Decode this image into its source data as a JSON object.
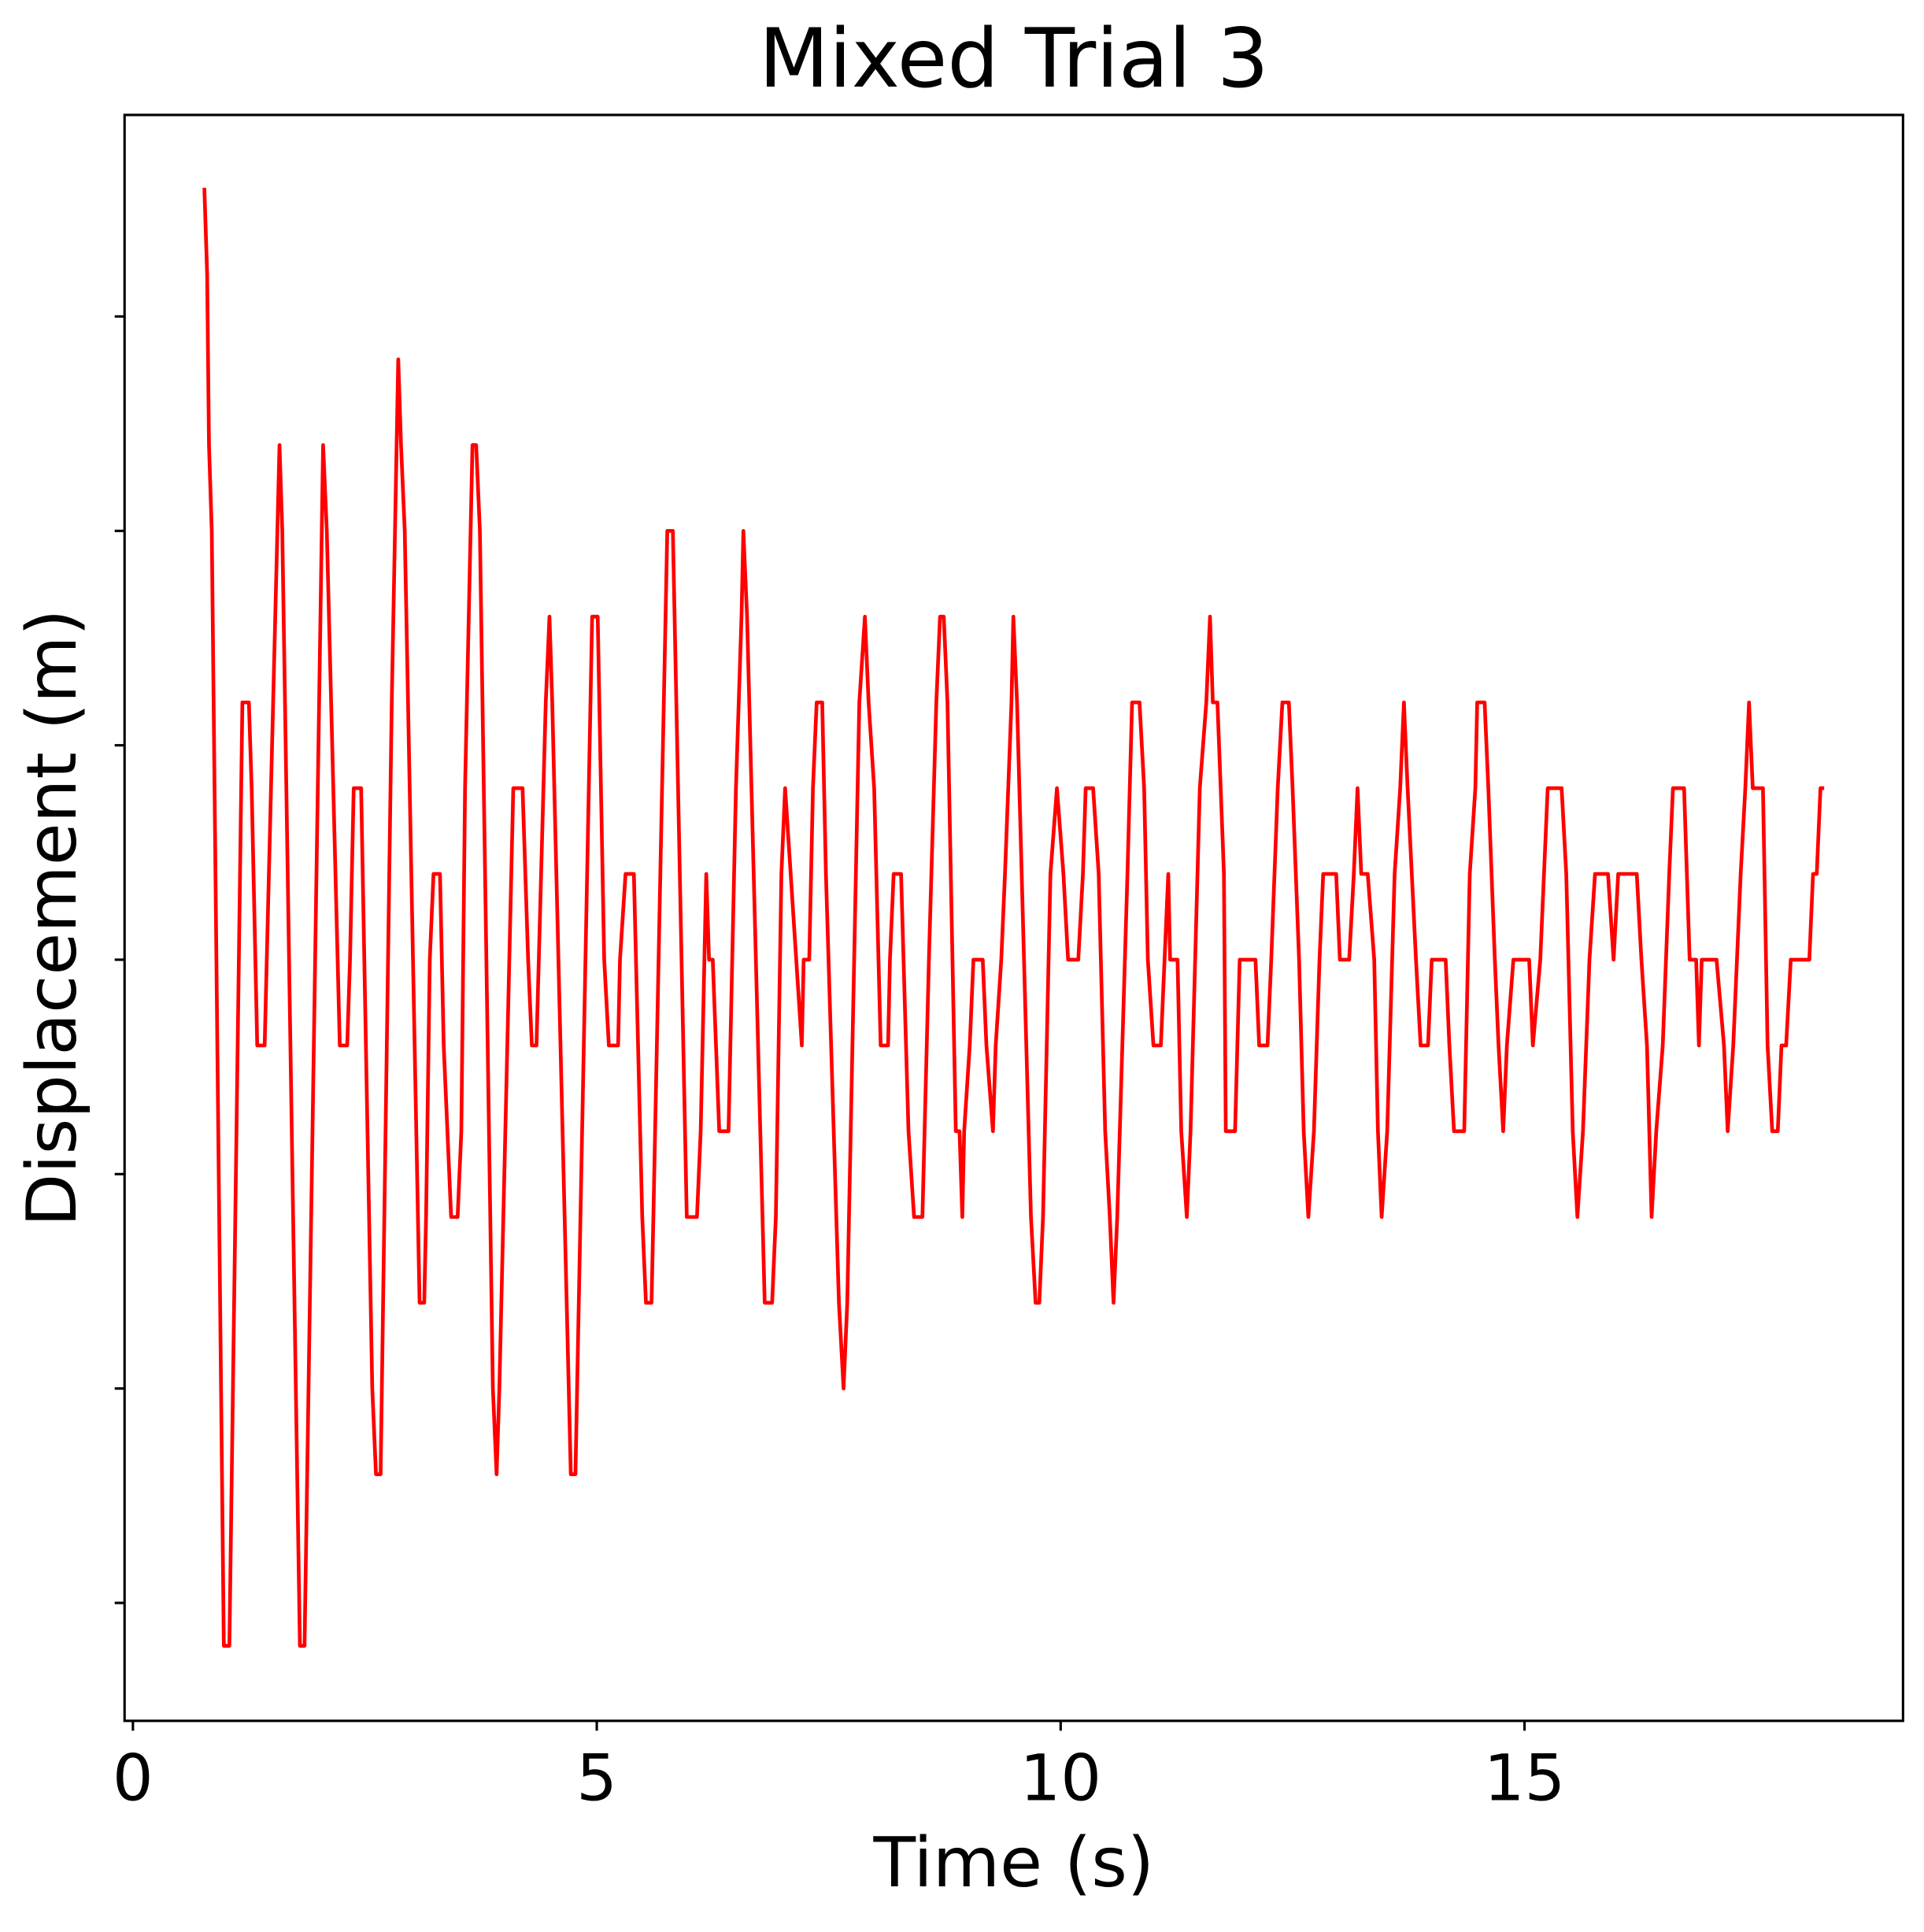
{
  "chart_data": {
    "type": "line",
    "title": "Mixed Trial 3",
    "x_label": "Time (s)",
    "y_label": "Displacement (m)",
    "xlim": [
      -0.09,
      19.08
    ],
    "xticks": [
      0,
      5,
      10,
      15
    ],
    "ylim": [
      -3.55,
      3.94
    ],
    "yticks": [
      -3,
      -2,
      -1,
      0,
      1,
      2,
      3
    ],
    "x": [
      0.77,
      0.8,
      0.82,
      0.85,
      0.98,
      1.04,
      1.18,
      1.25,
      1.28,
      1.32,
      1.34,
      1.42,
      1.58,
      1.61,
      1.8,
      1.85,
      2.05,
      2.09,
      2.23,
      2.31,
      2.34,
      2.38,
      2.46,
      2.58,
      2.62,
      2.67,
      2.79,
      2.86,
      2.89,
      2.93,
      3.09,
      3.14,
      3.16,
      3.2,
      3.24,
      3.31,
      3.35,
      3.43,
      3.5,
      3.54,
      3.58,
      3.66,
      3.7,
      3.74,
      3.88,
      3.92,
      3.95,
      4.1,
      4.2,
      4.26,
      4.3,
      4.35,
      4.45,
      4.49,
      4.52,
      4.72,
      4.77,
      4.95,
      5.01,
      5.08,
      5.13,
      5.23,
      5.25,
      5.31,
      5.4,
      5.49,
      5.53,
      5.59,
      5.61,
      5.76,
      5.82,
      5.97,
      6.08,
      6.12,
      6.16,
      6.18,
      6.21,
      6.25,
      6.32,
      6.42,
      6.5,
      6.56,
      6.58,
      6.62,
      6.81,
      6.89,
      6.93,
      6.99,
      7.03,
      7.09,
      7.15,
      7.21,
      7.23,
      7.29,
      7.33,
      7.37,
      7.43,
      7.47,
      7.61,
      7.66,
      7.7,
      7.83,
      7.89,
      7.93,
      7.99,
      8.06,
      8.14,
      8.16,
      8.2,
      8.28,
      8.36,
      8.42,
      8.51,
      8.58,
      8.66,
      8.7,
      8.74,
      8.78,
      8.87,
      8.91,
      8.94,
      8.96,
      9.02,
      9.06,
      9.16,
      9.2,
      9.27,
      9.3,
      9.36,
      9.4,
      9.47,
      9.49,
      9.53,
      9.68,
      9.73,
      9.77,
      9.81,
      9.89,
      9.96,
      10.03,
      10.08,
      10.19,
      10.24,
      10.27,
      10.35,
      10.41,
      10.48,
      10.53,
      10.57,
      10.61,
      10.72,
      10.77,
      10.85,
      10.9,
      10.94,
      11.0,
      11.08,
      11.12,
      11.16,
      11.18,
      11.26,
      11.3,
      11.36,
      11.4,
      11.5,
      11.57,
      11.61,
      11.64,
      11.69,
      11.76,
      11.78,
      11.88,
      11.93,
      12.1,
      12.14,
      12.23,
      12.27,
      12.34,
      12.39,
      12.46,
      12.5,
      12.57,
      12.62,
      12.67,
      12.73,
      12.79,
      12.83,
      12.97,
      13.01,
      13.11,
      13.16,
      13.2,
      13.24,
      13.31,
      13.38,
      13.42,
      13.46,
      13.52,
      13.6,
      13.66,
      13.7,
      13.74,
      13.83,
      13.88,
      13.96,
      14.0,
      14.15,
      14.19,
      14.24,
      14.35,
      14.41,
      14.47,
      14.49,
      14.57,
      14.61,
      14.68,
      14.72,
      14.77,
      14.81,
      14.88,
      15.05,
      15.09,
      15.17,
      15.21,
      15.25,
      15.4,
      15.45,
      15.52,
      15.57,
      15.63,
      15.7,
      15.76,
      15.9,
      15.96,
      16.01,
      16.21,
      16.26,
      16.32,
      16.37,
      16.42,
      16.49,
      16.56,
      16.6,
      16.72,
      16.78,
      16.85,
      16.88,
      16.91,
      17.07,
      17.15,
      17.19,
      17.25,
      17.33,
      17.38,
      17.42,
      17.46,
      17.57,
      17.62,
      17.67,
      17.73,
      17.77,
      17.82,
      17.87,
      18.07,
      18.11,
      18.15,
      18.19,
      18.23
    ],
    "series": [
      {
        "color": "#ff0000",
        "values": [
          3.6,
          3.2,
          2.4,
          2.0,
          -3.2,
          -3.2,
          1.2,
          1.2,
          0.8,
          0,
          -0.4,
          -0.4,
          2.4,
          2.0,
          -3.2,
          -3.2,
          2.4,
          2.0,
          -0.4,
          -0.4,
          0,
          0.8,
          0.8,
          -2.0,
          -2.4,
          -2.4,
          1.2,
          2.8,
          2.4,
          2.0,
          -1.6,
          -1.6,
          -1.2,
          0,
          0.4,
          0.4,
          -0.4,
          -1.2,
          -1.2,
          -0.8,
          0.8,
          2.4,
          2.4,
          2.0,
          -2.0,
          -2.4,
          -2.0,
          0.8,
          0.8,
          0,
          -0.4,
          -0.4,
          1.2,
          1.6,
          1.2,
          -2.4,
          -2.4,
          1.6,
          1.6,
          0,
          -0.4,
          -0.4,
          0,
          0.4,
          0.4,
          -1.2,
          -1.6,
          -1.6,
          -1.2,
          2.0,
          2.0,
          -1.2,
          -1.2,
          -0.8,
          0,
          0.4,
          0,
          0,
          -0.8,
          -0.8,
          0.8,
          1.6,
          2.0,
          1.6,
          -1.6,
          -1.6,
          -1.2,
          0.4,
          0.8,
          0.4,
          0,
          -0.4,
          0,
          0,
          0.8,
          1.2,
          1.2,
          0.4,
          -1.6,
          -2.0,
          -1.6,
          1.2,
          1.6,
          1.2,
          0.8,
          -0.4,
          -0.4,
          0,
          0.4,
          0.4,
          -0.8,
          -1.2,
          -1.2,
          0,
          1.2,
          1.6,
          1.6,
          1.2,
          -0.8,
          -0.8,
          -1.2,
          -0.8,
          -0.4,
          0,
          0,
          -0.4,
          -0.8,
          -0.4,
          0,
          0.4,
          1.2,
          1.6,
          1.2,
          -1.2,
          -1.6,
          -1.6,
          -1.2,
          0.4,
          0.8,
          0.4,
          0,
          0,
          0.4,
          0.8,
          0.8,
          0.4,
          -0.8,
          -1.2,
          -1.6,
          -1.2,
          0.4,
          1.2,
          1.2,
          0.8,
          0,
          -0.4,
          -0.4,
          0,
          0.4,
          0,
          0,
          -0.8,
          -1.2,
          -0.8,
          0.8,
          1.2,
          1.6,
          1.2,
          1.2,
          0.4,
          -0.8,
          -0.8,
          0,
          0,
          -0.4,
          -0.4,
          0,
          0.8,
          1.2,
          1.2,
          0.8,
          0,
          -0.8,
          -1.2,
          -0.8,
          0,
          0.4,
          0.4,
          0,
          0,
          0.4,
          0.8,
          0.4,
          0.4,
          0,
          -0.8,
          -1.2,
          -0.8,
          0.4,
          0.8,
          1.2,
          0.8,
          0,
          -0.4,
          -0.4,
          0,
          0,
          -0.4,
          -0.8,
          -0.8,
          0.4,
          0.8,
          1.2,
          1.2,
          0.8,
          0,
          -0.4,
          -0.8,
          -0.4,
          0,
          0,
          -0.4,
          0,
          0.4,
          0.8,
          0.8,
          0.4,
          -0.8,
          -1.2,
          -0.8,
          0,
          0.4,
          0.4,
          0,
          0.4,
          0.4,
          0,
          -0.4,
          -1.2,
          -0.8,
          -0.4,
          0.4,
          0.8,
          0.8,
          0,
          0,
          -0.4,
          0,
          0,
          -0.4,
          -0.8,
          -0.4,
          0.4,
          0.8,
          1.2,
          0.8,
          0.8,
          -0.4,
          -0.8,
          -0.8,
          -0.4,
          -0.4,
          0,
          0,
          0.4,
          0.4,
          0.8,
          0.8
        ]
      }
    ]
  }
}
